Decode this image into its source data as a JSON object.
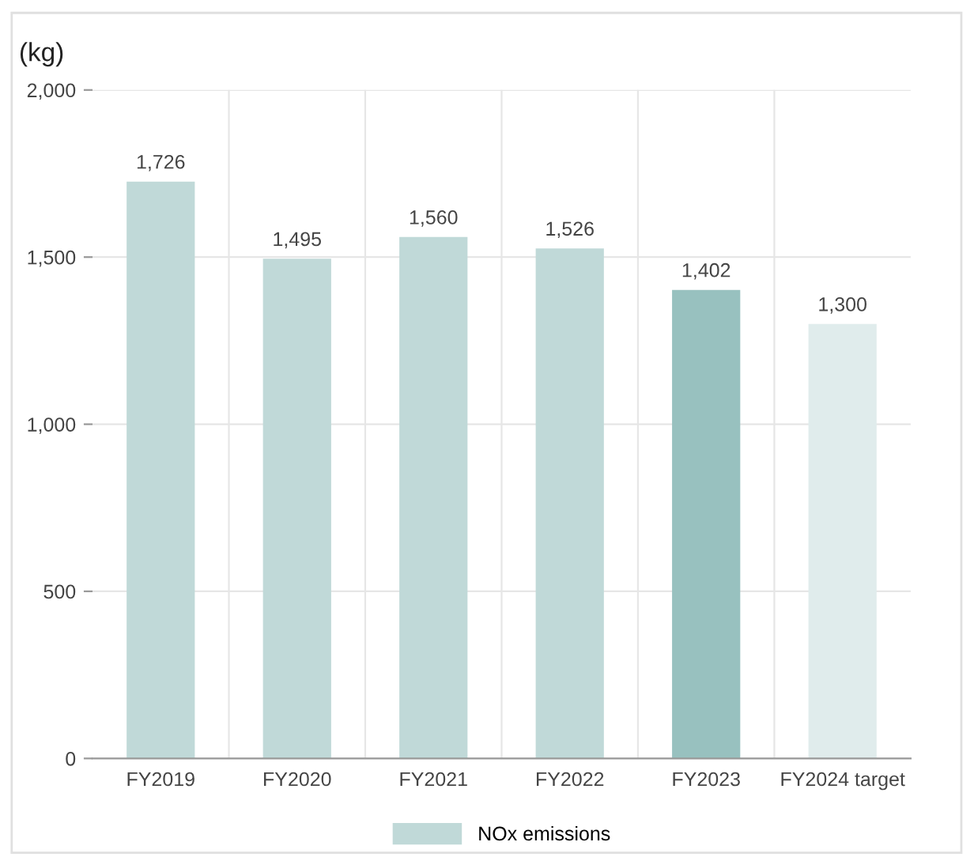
{
  "chart_data": {
    "type": "bar",
    "ylabel": "(kg)",
    "categories": [
      "FY2019",
      "FY2020",
      "FY2021",
      "FY2022",
      "FY2023",
      "FY2024 target"
    ],
    "series": [
      {
        "name": "NOx emissions",
        "color": "#c0d9d8",
        "colors": [
          "#c0d9d8",
          "#c0d9d8",
          "#c0d9d8",
          "#c0d9d8",
          "#98c1bf",
          "#e0ecec"
        ],
        "values": [
          1726,
          1495,
          1560,
          1526,
          1402,
          1300
        ]
      }
    ],
    "ylim": [
      0,
      2000
    ],
    "yticks": [
      {
        "value": 0,
        "label": "0"
      },
      {
        "value": 500,
        "label": "500"
      },
      {
        "value": 1000,
        "label": "1,000"
      },
      {
        "value": 1500,
        "label": "1,500"
      },
      {
        "value": 2000,
        "label": "2,000"
      }
    ],
    "value_labels": [
      "1,726",
      "1,495",
      "1,560",
      "1,526",
      "1,402",
      "1,300"
    ],
    "grid": true,
    "legend": "bottom"
  }
}
